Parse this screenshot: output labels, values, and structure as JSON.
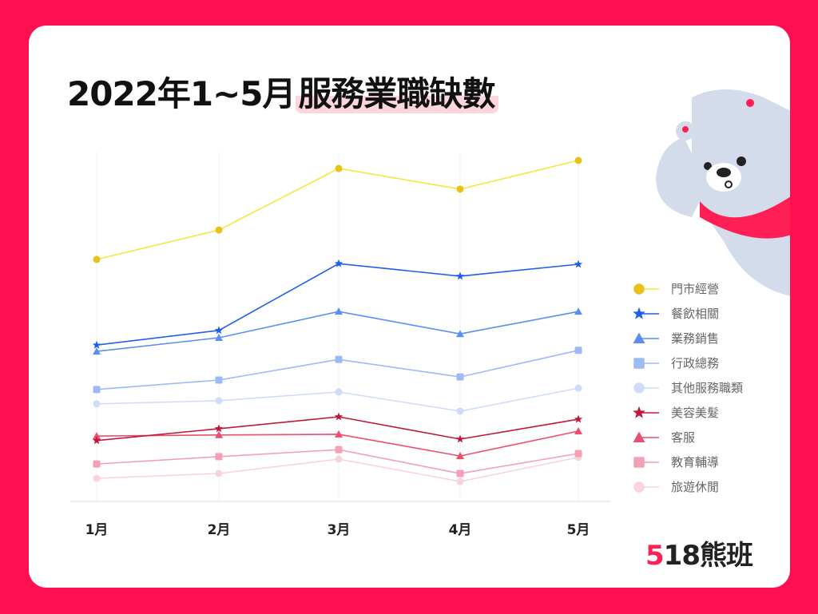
{
  "title_prefix": "2022年1~5月",
  "title_highlight": "服務業職缺數",
  "logo": "518熊班",
  "colors": {
    "background": "#ff0f4f",
    "highlight": "#fdd5dc"
  },
  "chart_data": {
    "type": "line",
    "title": "2022年1~5月服務業職缺數",
    "categories": [
      "1月",
      "2月",
      "3月",
      "4月",
      "5月"
    ],
    "ylim": [
      0,
      100
    ],
    "y_axis_labels_shown": false,
    "grid": "vertical",
    "legend_position": "right",
    "series": [
      {
        "name": "門市經營",
        "color": "#f5e642",
        "marker_color": "#e8c21a",
        "marker": "circle",
        "values": [
          69.2,
          77.6,
          95.2,
          89.3,
          97.5
        ]
      },
      {
        "name": "餐飲相關",
        "color": "#1f5ee8",
        "marker_color": "#1f5ee8",
        "marker": "star",
        "values": [
          44.7,
          48.9,
          68.0,
          64.4,
          67.8
        ]
      },
      {
        "name": "業務銷售",
        "color": "#5b8ef0",
        "marker_color": "#5b8ef0",
        "marker": "triangle",
        "values": [
          42.9,
          46.8,
          54.3,
          47.9,
          54.3
        ]
      },
      {
        "name": "行政總務",
        "color": "#9dbaf5",
        "marker_color": "#9dbaf5",
        "marker": "square",
        "values": [
          32.0,
          34.7,
          40.6,
          35.6,
          43.2
        ]
      },
      {
        "name": "其他服務職類",
        "color": "#cfdcf8",
        "marker_color": "#cfdcf8",
        "marker": "circle",
        "values": [
          27.9,
          28.8,
          31.3,
          25.8,
          32.4
        ]
      },
      {
        "name": "美容美髮",
        "color": "#c0183a",
        "marker_color": "#c0183a",
        "marker": "star",
        "values": [
          17.4,
          20.8,
          24.2,
          17.8,
          23.5
        ]
      },
      {
        "name": "客服",
        "color": "#ec4e6e",
        "marker_color": "#ec4e6e",
        "marker": "triangle",
        "values": [
          18.7,
          19.0,
          19.2,
          13.0,
          20.1
        ]
      },
      {
        "name": "教育輔導",
        "color": "#f4a0b4",
        "marker_color": "#f4a0b4",
        "marker": "square",
        "values": [
          10.7,
          12.8,
          14.8,
          8.0,
          13.7
        ]
      },
      {
        "name": "旅遊休閒",
        "color": "#fad3dc",
        "marker_color": "#fad3dc",
        "marker": "circle",
        "values": [
          6.6,
          8.0,
          12.1,
          5.7,
          12.6
        ]
      }
    ]
  }
}
